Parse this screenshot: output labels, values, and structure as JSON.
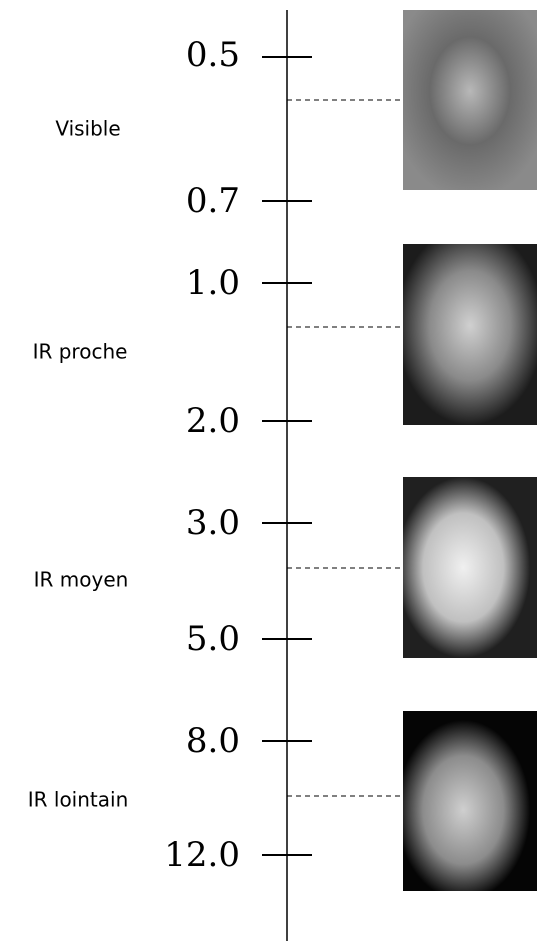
{
  "bands": [
    {
      "label": "Visible",
      "ticks": [
        "0.5",
        "0.7"
      ]
    },
    {
      "label": "IR proche",
      "ticks": [
        "1.0",
        "2.0"
      ]
    },
    {
      "label": "IR moyen",
      "ticks": [
        "3.0",
        "5.0"
      ]
    },
    {
      "label": "IR lointain",
      "ticks": [
        "8.0",
        "12.0"
      ]
    }
  ]
}
